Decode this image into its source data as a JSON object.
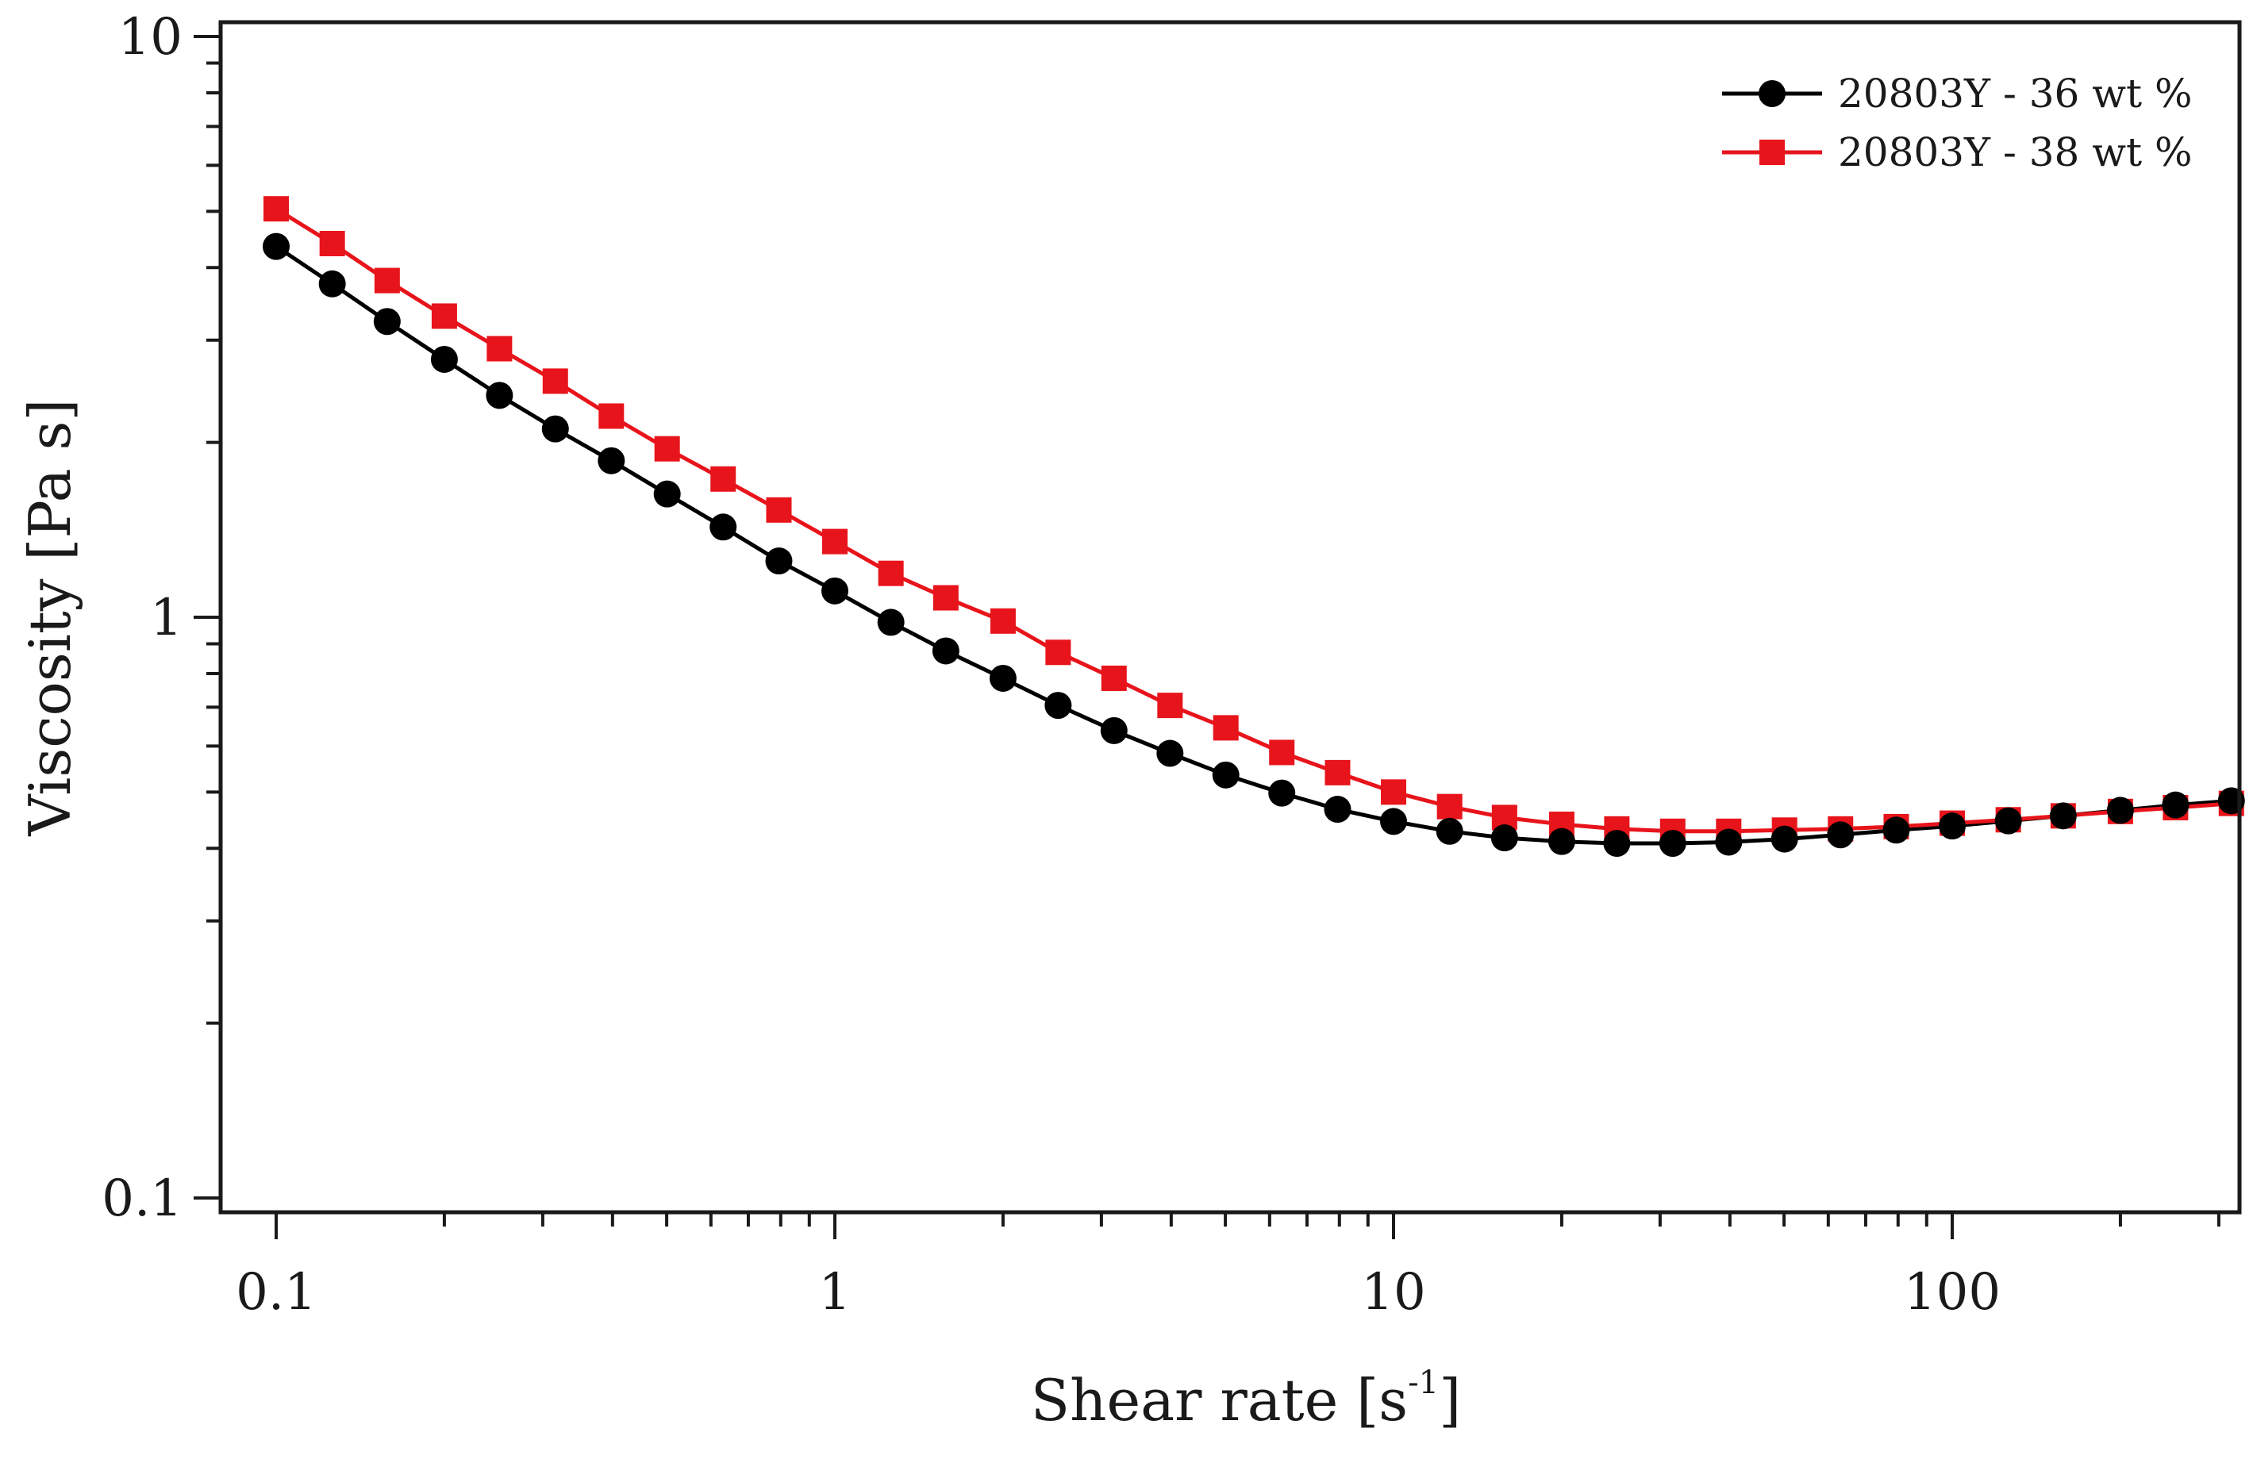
{
  "chart_data": {
    "type": "line",
    "title": "",
    "xlabel": "Shear rate  [s",
    "xlabel_sup": "-1",
    "xlabel_close": "]",
    "ylabel": "Viscosity  [Pa s]",
    "xscale": "log",
    "yscale": "log",
    "xlim": [
      0.1,
      316
    ],
    "ylim": [
      0.1,
      10
    ],
    "xticks": [
      {
        "value": 0.1,
        "label": "0.1"
      },
      {
        "value": 1,
        "label": "1"
      },
      {
        "value": 10,
        "label": "10"
      },
      {
        "value": 100,
        "label": "100"
      }
    ],
    "yticks": [
      {
        "value": 0.1,
        "label": "0.1"
      },
      {
        "value": 1,
        "label": "1"
      },
      {
        "value": 10,
        "label": "10"
      }
    ],
    "legend_position": "top-right",
    "x": [
      0.1,
      0.126,
      0.158,
      0.2,
      0.251,
      0.316,
      0.398,
      0.501,
      0.631,
      0.794,
      1.0,
      1.26,
      1.58,
      2.0,
      2.51,
      3.16,
      3.98,
      5.01,
      6.31,
      7.94,
      10.0,
      12.6,
      15.8,
      20.0,
      25.1,
      31.6,
      39.8,
      50.1,
      63.1,
      79.4,
      100,
      126,
      158,
      200,
      251,
      316
    ],
    "series": [
      {
        "name": "20803Y - 36 wt %",
        "color": "#000000",
        "marker": "circle",
        "values": [
          4.35,
          3.75,
          3.23,
          2.78,
          2.41,
          2.11,
          1.86,
          1.63,
          1.43,
          1.25,
          1.11,
          0.98,
          0.875,
          0.785,
          0.705,
          0.638,
          0.583,
          0.535,
          0.498,
          0.467,
          0.445,
          0.428,
          0.417,
          0.411,
          0.408,
          0.408,
          0.41,
          0.415,
          0.422,
          0.43,
          0.437,
          0.446,
          0.455,
          0.465,
          0.475,
          0.483
        ]
      },
      {
        "name": "20803Y - 38 wt %",
        "color": "#e8141b",
        "marker": "square",
        "values": [
          5.05,
          4.4,
          3.8,
          3.3,
          2.9,
          2.55,
          2.22,
          1.95,
          1.73,
          1.53,
          1.35,
          1.19,
          1.08,
          0.985,
          0.87,
          0.785,
          0.705,
          0.645,
          0.585,
          0.54,
          0.5,
          0.472,
          0.452,
          0.44,
          0.432,
          0.428,
          0.428,
          0.43,
          0.432,
          0.436,
          0.442,
          0.448,
          0.455,
          0.463,
          0.47,
          0.478
        ]
      }
    ]
  }
}
